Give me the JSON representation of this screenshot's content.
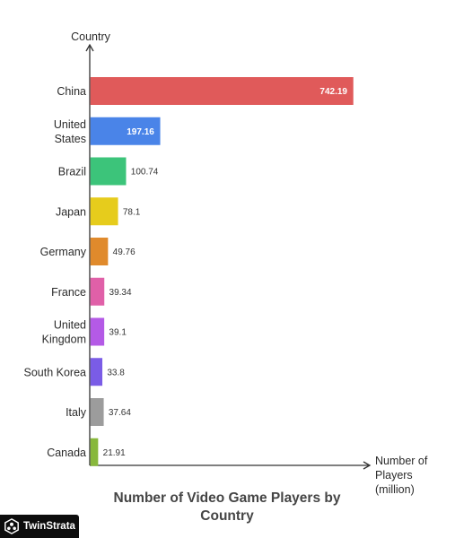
{
  "chart_data": {
    "type": "bar",
    "orientation": "horizontal",
    "title": "Number of Video Game Players by Country",
    "ylabel": "Country",
    "xlabel": [
      "Number of",
      "Players",
      "(million)"
    ],
    "categories": [
      [
        "China"
      ],
      [
        "United",
        "States"
      ],
      [
        "Brazil"
      ],
      [
        "Japan"
      ],
      [
        "Germany"
      ],
      [
        "France"
      ],
      [
        "United",
        "Kingdom"
      ],
      [
        "South Korea"
      ],
      [
        "Italy"
      ],
      [
        "Canada"
      ]
    ],
    "values": [
      742.19,
      197.16,
      100.74,
      78.1,
      49.76,
      39.34,
      39.1,
      33.8,
      37.64,
      21.91
    ],
    "value_labels": [
      "742.19",
      "197.16",
      "100.74",
      "78.1",
      "49.76",
      "39.34",
      "39.1",
      "33.8",
      "37.64",
      "21.91"
    ],
    "colors": [
      "#e05a5a",
      "#4a84e8",
      "#3cc47a",
      "#e6cc1c",
      "#e08a2c",
      "#e060a8",
      "#b45ae6",
      "#7a5ce6",
      "#9c9c9c",
      "#88b83c"
    ],
    "xlim": [
      0,
      742.19
    ],
    "grid": false,
    "legend": "none"
  },
  "brand": {
    "name": "TwinStrata",
    "icon": "twinstrata-logo-icon"
  }
}
